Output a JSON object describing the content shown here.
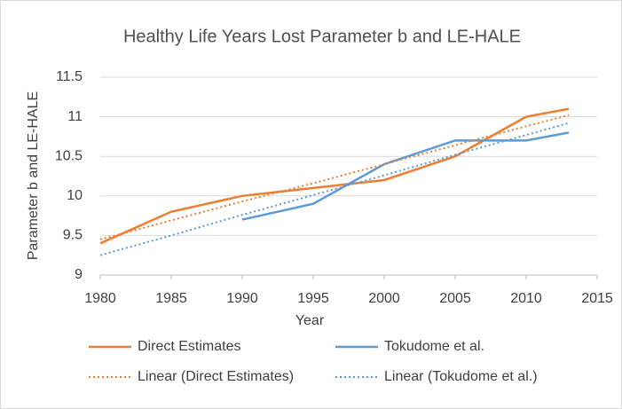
{
  "chart_data": {
    "type": "line",
    "title": "Healthy Life Years Lost Parameter b and LE-HALE",
    "x_label": "Year",
    "y_label": "Parameter b and LE-HALE",
    "x": [
      1980,
      1985,
      1990,
      1995,
      2000,
      2005,
      2010,
      2013
    ],
    "series": [
      {
        "name": "Direct Estimates",
        "color": "#ed7d31",
        "dash": "solid",
        "values": [
          9.4,
          9.8,
          10.0,
          10.1,
          10.2,
          10.5,
          11.0,
          11.1
        ]
      },
      {
        "name": "Tokudome et al.",
        "color": "#5b9bd5",
        "dash": "solid",
        "values": [
          null,
          null,
          9.7,
          9.9,
          10.4,
          10.7,
          10.7,
          10.8
        ]
      },
      {
        "name": "Linear (Direct Estimates)",
        "color": "#ed7d31",
        "dash": "dotted",
        "values": [
          9.45,
          9.69,
          9.93,
          10.16,
          10.4,
          10.64,
          10.88,
          11.02
        ]
      },
      {
        "name": "Linear (Tokudome et al.)",
        "color": "#5b9bd5",
        "dash": "dotted",
        "values": [
          9.25,
          9.5,
          9.76,
          10.01,
          10.26,
          10.52,
          10.77,
          10.92
        ]
      }
    ],
    "xlim": [
      1980,
      2015
    ],
    "xticks": [
      1980,
      1985,
      1990,
      1995,
      2000,
      2005,
      2010,
      2015
    ],
    "ylim": [
      9,
      11.5
    ],
    "yticks": [
      9,
      9.5,
      10,
      10.5,
      11,
      11.5
    ],
    "grid": true,
    "legend": "bottom"
  }
}
